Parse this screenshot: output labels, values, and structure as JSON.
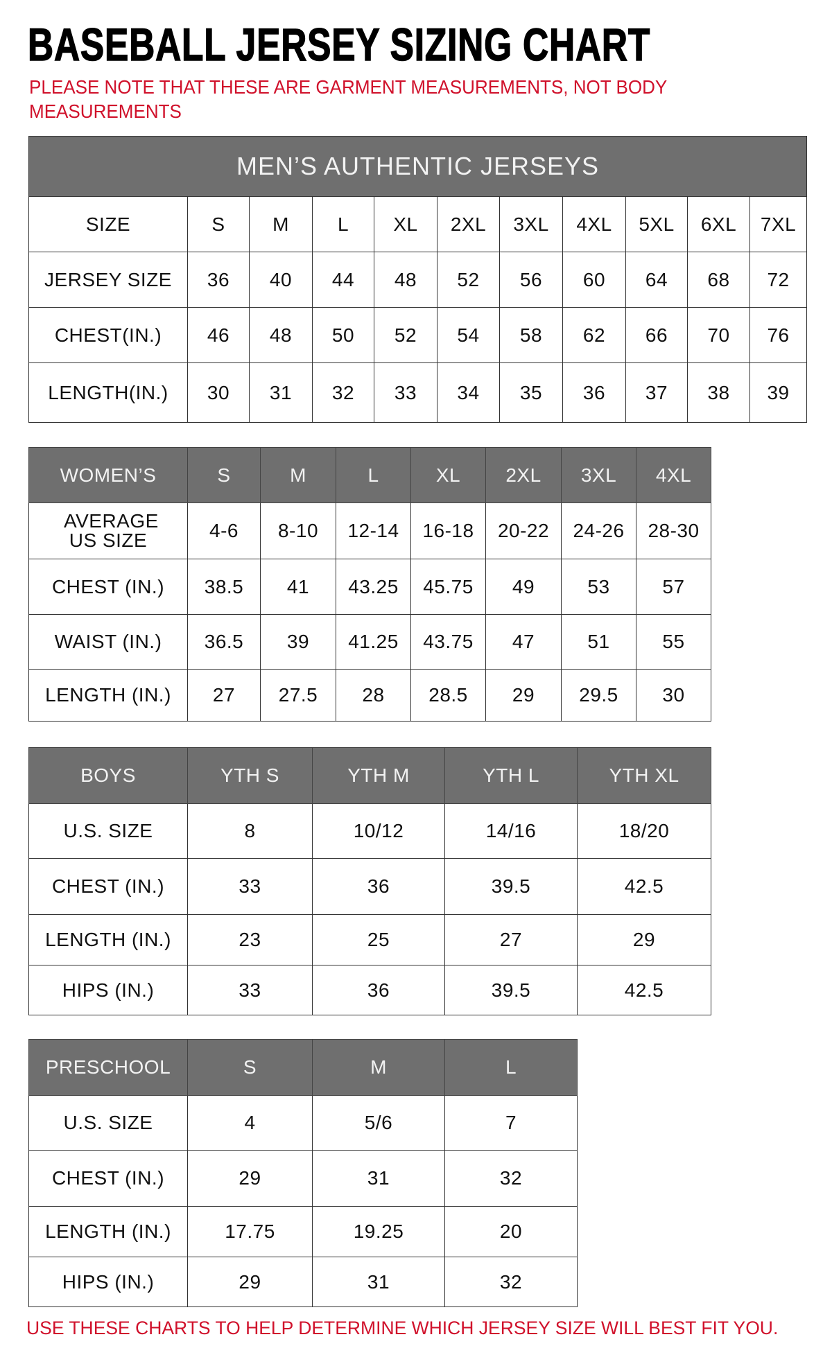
{
  "title": "BASEBALL JERSEY SIZING CHART",
  "note": "PLEASE NOTE THAT THESE ARE GARMENT MEASUREMENTS, NOT BODY MEASUREMENTS",
  "footer": "USE THESE CHARTS TO HELP DETERMINE WHICH JERSEY SIZE WILL BEST FIT YOU.",
  "colors": {
    "header_bg": "#6f6f6f",
    "accent_red": "#d0112b"
  },
  "tables": [
    {
      "id": "mens",
      "banner": "MEN’S AUTHENTIC JERSEYS",
      "header": [
        "SIZE",
        "S",
        "M",
        "L",
        "XL",
        "2XL",
        "3XL",
        "4XL",
        "5XL",
        "6XL",
        "7XL"
      ],
      "header_style": "plain",
      "rows": [
        [
          "JERSEY SIZE",
          "36",
          "40",
          "44",
          "48",
          "52",
          "56",
          "60",
          "64",
          "68",
          "72"
        ],
        [
          "CHEST(IN.)",
          "46",
          "48",
          "50",
          "52",
          "54",
          "58",
          "62",
          "66",
          "70",
          "76"
        ],
        [
          "LENGTH(IN.)",
          "30",
          "31",
          "32",
          "33",
          "34",
          "35",
          "36",
          "37",
          "38",
          "39"
        ]
      ]
    },
    {
      "id": "womens",
      "header": [
        "WOMEN’S",
        "S",
        "M",
        "L",
        "XL",
        "2XL",
        "3XL",
        "4XL"
      ],
      "header_style": "gray",
      "rows": [
        [
          "AVERAGE US SIZE",
          "4-6",
          "8-10",
          "12-14",
          "16-18",
          "20-22",
          "24-26",
          "28-30"
        ],
        [
          "CHEST (IN.)",
          "38.5",
          "41",
          "43.25",
          "45.75",
          "49",
          "53",
          "57"
        ],
        [
          "WAIST (IN.)",
          "36.5",
          "39",
          "41.25",
          "43.75",
          "47",
          "51",
          "55"
        ],
        [
          "LENGTH (IN.)",
          "27",
          "27.5",
          "28",
          "28.5",
          "29",
          "29.5",
          "30"
        ]
      ]
    },
    {
      "id": "boys",
      "header": [
        "BOYS",
        "YTH S",
        "YTH M",
        "YTH L",
        "YTH XL"
      ],
      "header_style": "gray",
      "rows": [
        [
          "U.S. SIZE",
          "8",
          "10/12",
          "14/16",
          "18/20"
        ],
        [
          "CHEST (IN.)",
          "33",
          "36",
          "39.5",
          "42.5"
        ],
        [
          "LENGTH (IN.)",
          "23",
          "25",
          "27",
          "29"
        ],
        [
          "HIPS (IN.)",
          "33",
          "36",
          "39.5",
          "42.5"
        ]
      ]
    },
    {
      "id": "preschool",
      "header": [
        "PRESCHOOL",
        "S",
        "M",
        "L"
      ],
      "header_style": "gray",
      "rows": [
        [
          "U.S. SIZE",
          "4",
          "5/6",
          "7"
        ],
        [
          "CHEST (IN.)",
          "29",
          "31",
          "32"
        ],
        [
          "LENGTH (IN.)",
          "17.75",
          "19.25",
          "20"
        ],
        [
          "HIPS (IN.)",
          "29",
          "31",
          "32"
        ]
      ]
    }
  ]
}
